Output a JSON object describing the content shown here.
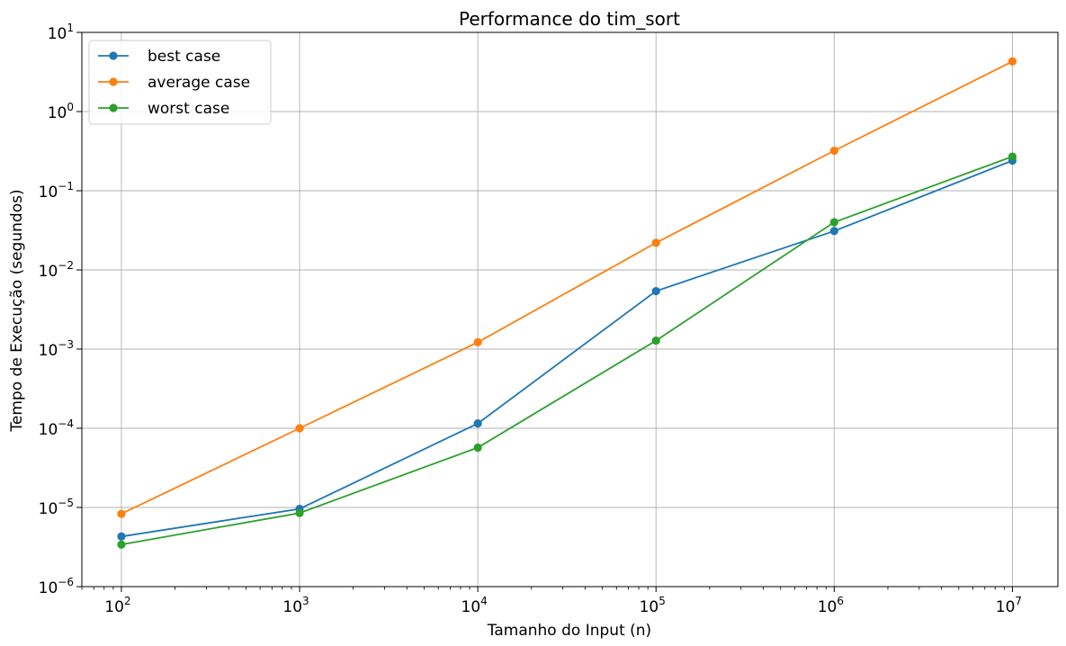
{
  "chart_data": {
    "type": "line",
    "title": "Performance do tim_sort",
    "xlabel": "Tamanho do Input (n)",
    "ylabel": "Tempo de Execução (segundos)",
    "x_scale": "log",
    "y_scale": "log",
    "xlim": [
      60,
      18000000
    ],
    "ylim": [
      1e-06,
      10
    ],
    "x_ticks": [
      {
        "value": 100,
        "base": "10",
        "exp": "2"
      },
      {
        "value": 1000,
        "base": "10",
        "exp": "3"
      },
      {
        "value": 10000,
        "base": "10",
        "exp": "4"
      },
      {
        "value": 100000,
        "base": "10",
        "exp": "5"
      },
      {
        "value": 1000000,
        "base": "10",
        "exp": "6"
      },
      {
        "value": 10000000,
        "base": "10",
        "exp": "7"
      }
    ],
    "y_ticks": [
      {
        "value": 1e-06,
        "base": "10",
        "exp": "−6"
      },
      {
        "value": 1e-05,
        "base": "10",
        "exp": "−5"
      },
      {
        "value": 0.0001,
        "base": "10",
        "exp": "−4"
      },
      {
        "value": 0.001,
        "base": "10",
        "exp": "−3"
      },
      {
        "value": 0.01,
        "base": "10",
        "exp": "−2"
      },
      {
        "value": 0.1,
        "base": "10",
        "exp": "−1"
      },
      {
        "value": 1,
        "base": "10",
        "exp": "0"
      },
      {
        "value": 10,
        "base": "10",
        "exp": "1"
      }
    ],
    "grid": true,
    "legend_position": "top-left",
    "x": [
      100,
      1000,
      10000,
      100000,
      1000000,
      10000000
    ],
    "series": [
      {
        "name": "best case",
        "color": "#1f77b4",
        "values": [
          4.3e-06,
          9.6e-06,
          0.000115,
          0.0054,
          0.031,
          0.24
        ]
      },
      {
        "name": "average case",
        "color": "#ff7f0e",
        "values": [
          8.3e-06,
          0.0001,
          0.00122,
          0.022,
          0.32,
          4.3
        ]
      },
      {
        "name": "worst case",
        "color": "#2ca02c",
        "values": [
          3.4e-06,
          8.5e-06,
          5.7e-05,
          0.00128,
          0.04,
          0.27
        ]
      }
    ]
  }
}
